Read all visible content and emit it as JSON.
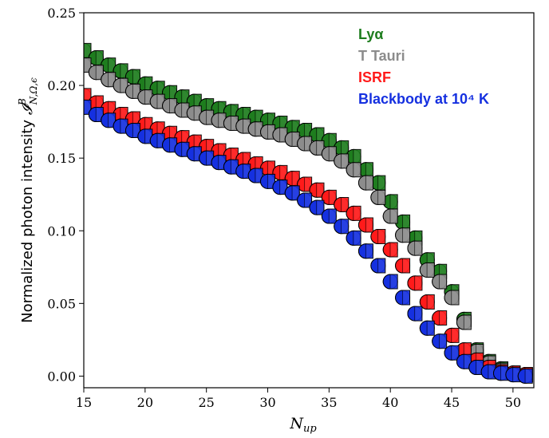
{
  "chart_data": {
    "type": "scatter",
    "xlabel": "N_up",
    "ylabel": "Normalized photon intensity",
    "ylabel_math": "𝓘",
    "ylabel_sup": "B",
    "ylabel_sub": "N,Ω,ϵ",
    "xlim": [
      15,
      51.7
    ],
    "ylim": [
      -0.008,
      0.25
    ],
    "xticks": [
      "15",
      "20",
      "25",
      "30",
      "35",
      "40",
      "45",
      "50"
    ],
    "yticks": [
      "0.00",
      "0.05",
      "0.10",
      "0.15",
      "0.20",
      "0.25"
    ],
    "legend_position": "top-right",
    "x": [
      15,
      16,
      17,
      18,
      19,
      20,
      21,
      22,
      23,
      24,
      25,
      26,
      27,
      28,
      29,
      30,
      31,
      32,
      33,
      34,
      35,
      36,
      37,
      38,
      39,
      40,
      41,
      42,
      43,
      44,
      45,
      46,
      47,
      48,
      49,
      50,
      51
    ],
    "series": [
      {
        "name": "Lyα",
        "color": "#1e7d1e",
        "values": [
          0.224,
          0.219,
          0.214,
          0.21,
          0.206,
          0.201,
          0.198,
          0.195,
          0.192,
          0.189,
          0.186,
          0.184,
          0.182,
          0.18,
          0.178,
          0.176,
          0.174,
          0.171,
          0.169,
          0.166,
          0.162,
          0.157,
          0.151,
          0.142,
          0.133,
          0.12,
          0.106,
          0.095,
          0.08,
          0.072,
          0.058,
          0.039,
          0.018,
          0.01,
          0.005,
          0.002,
          0.001
        ]
      },
      {
        "name": "T Tauri",
        "color": "#8c8c8c",
        "values": [
          0.214,
          0.209,
          0.204,
          0.2,
          0.196,
          0.192,
          0.189,
          0.186,
          0.183,
          0.181,
          0.178,
          0.176,
          0.174,
          0.172,
          0.17,
          0.168,
          0.166,
          0.163,
          0.16,
          0.157,
          0.153,
          0.148,
          0.142,
          0.133,
          0.123,
          0.11,
          0.097,
          0.088,
          0.073,
          0.065,
          0.054,
          0.037,
          0.017,
          0.009,
          0.004,
          0.002,
          0.001
        ]
      },
      {
        "name": "ISRF",
        "color": "#ff1a1a",
        "values": [
          0.193,
          0.188,
          0.184,
          0.18,
          0.177,
          0.173,
          0.17,
          0.167,
          0.164,
          0.161,
          0.158,
          0.155,
          0.152,
          0.149,
          0.146,
          0.143,
          0.14,
          0.136,
          0.132,
          0.128,
          0.123,
          0.118,
          0.112,
          0.104,
          0.096,
          0.087,
          0.076,
          0.064,
          0.051,
          0.04,
          0.028,
          0.018,
          0.011,
          0.006,
          0.003,
          0.002,
          0.001
        ]
      },
      {
        "name": "Blackbody at 10⁴ K",
        "color": "#1530e0",
        "values": [
          0.185,
          0.18,
          0.176,
          0.172,
          0.169,
          0.165,
          0.162,
          0.159,
          0.156,
          0.153,
          0.15,
          0.147,
          0.144,
          0.141,
          0.138,
          0.134,
          0.13,
          0.126,
          0.121,
          0.116,
          0.11,
          0.103,
          0.095,
          0.086,
          0.076,
          0.065,
          0.054,
          0.043,
          0.033,
          0.024,
          0.016,
          0.01,
          0.006,
          0.003,
          0.002,
          0.001,
          0.0
        ]
      }
    ]
  }
}
